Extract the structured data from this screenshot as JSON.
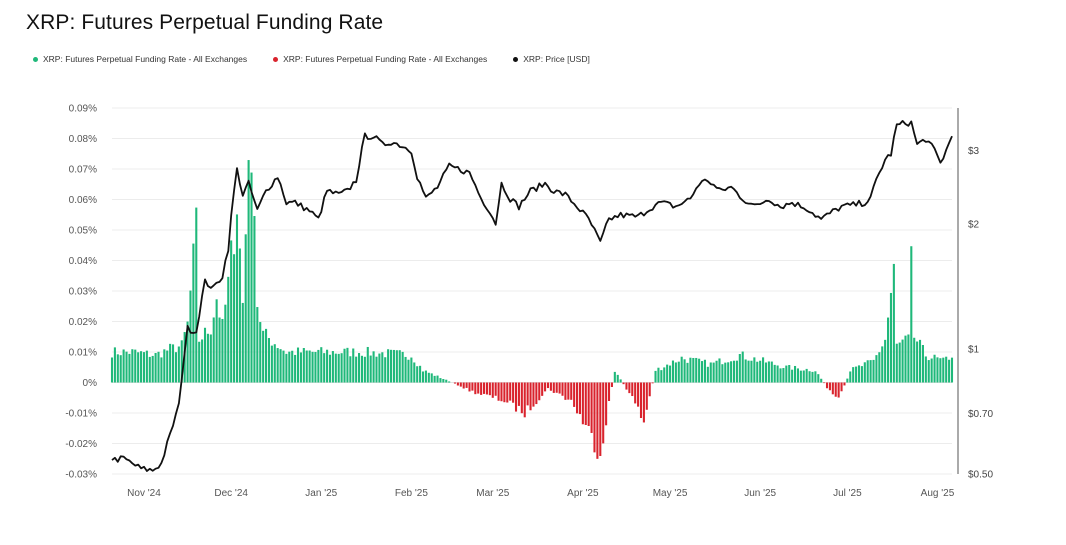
{
  "title": "XRP: Futures Perpetual Funding Rate",
  "legend": [
    {
      "label": "XRP: Futures Perpetual Funding Rate - All Exchanges",
      "color": "#1fb87a"
    },
    {
      "label": "XRP: Futures Perpetual Funding Rate - All Exchanges",
      "color": "#d9232d"
    },
    {
      "label": "XRP: Price [USD]",
      "color": "#111111"
    }
  ],
  "chart_data": {
    "type": "bar",
    "title": "XRP: Futures Perpetual Funding Rate",
    "x_start": "2024-10-21",
    "x_end": "2025-08-06",
    "x_ticks": [
      {
        "date": "2024-11-01",
        "label": "Nov '24"
      },
      {
        "date": "2024-12-01",
        "label": "Dec '24"
      },
      {
        "date": "2025-01-01",
        "label": "Jan '25"
      },
      {
        "date": "2025-02-01",
        "label": "Feb '25"
      },
      {
        "date": "2025-03-01",
        "label": "Mar '25"
      },
      {
        "date": "2025-04-01",
        "label": "Apr '25"
      },
      {
        "date": "2025-05-01",
        "label": "May '25"
      },
      {
        "date": "2025-06-01",
        "label": "Jun '25"
      },
      {
        "date": "2025-07-01",
        "label": "Jul '25"
      },
      {
        "date": "2025-08-01",
        "label": "Aug '25"
      }
    ],
    "y_left": {
      "range": [
        -0.03,
        0.09
      ],
      "ticks": [
        0.09,
        0.08,
        0.07,
        0.06,
        0.05,
        0.04,
        0.03,
        0.02,
        0.01,
        0,
        -0.01,
        -0.02,
        -0.03
      ],
      "tick_labels": [
        "0.09%",
        "0.08%",
        "0.07%",
        "0.06%",
        "0.05%",
        "0.04%",
        "0.03%",
        "0.02%",
        "0.01%",
        "0%",
        "-0.01%",
        "-0.02%",
        "-0.03%"
      ]
    },
    "y_right": {
      "scale": "log",
      "range": [
        0.5,
        3.8
      ],
      "ticks": [
        3,
        2,
        1,
        0.7,
        0.5
      ],
      "tick_labels": [
        "$3",
        "$2",
        "$1",
        "$0.70",
        "$0.50"
      ]
    },
    "funding_rate_keypoints": [
      [
        "2024-10-21",
        0.01
      ],
      [
        "2024-10-28",
        0.01
      ],
      [
        "2024-11-05",
        0.009
      ],
      [
        "2024-11-10",
        0.011
      ],
      [
        "2024-11-14",
        0.012
      ],
      [
        "2024-11-16",
        0.019
      ],
      [
        "2024-11-19",
        0.05
      ],
      [
        "2024-11-20",
        0.014
      ],
      [
        "2024-11-24",
        0.018
      ],
      [
        "2024-11-26",
        0.028
      ],
      [
        "2024-11-28",
        0.018
      ],
      [
        "2024-11-30",
        0.032
      ],
      [
        "2024-12-02",
        0.05
      ],
      [
        "2024-12-03",
        0.06
      ],
      [
        "2024-12-05",
        0.026
      ],
      [
        "2024-12-06",
        0.05
      ],
      [
        "2024-12-07",
        0.082
      ],
      [
        "2024-12-08",
        0.06
      ],
      [
        "2024-12-09",
        0.065
      ],
      [
        "2024-12-10",
        0.026
      ],
      [
        "2024-12-12",
        0.016
      ],
      [
        "2024-12-20",
        0.01
      ],
      [
        "2025-01-15",
        0.01
      ],
      [
        "2025-02-01",
        0.009
      ],
      [
        "2025-02-05",
        0.004
      ],
      [
        "2025-02-10",
        0.002
      ],
      [
        "2025-02-15",
        0.0
      ],
      [
        "2025-02-22",
        -0.003
      ],
      [
        "2025-03-05",
        -0.006
      ],
      [
        "2025-03-12",
        -0.01
      ],
      [
        "2025-03-20",
        -0.002
      ],
      [
        "2025-03-28",
        -0.006
      ],
      [
        "2025-04-03",
        -0.016
      ],
      [
        "2025-04-07",
        -0.023
      ],
      [
        "2025-04-12",
        0.004
      ],
      [
        "2025-04-18",
        -0.005
      ],
      [
        "2025-04-22",
        -0.013
      ],
      [
        "2025-04-26",
        0.004
      ],
      [
        "2025-05-05",
        0.008
      ],
      [
        "2025-05-15",
        0.006
      ],
      [
        "2025-05-25",
        0.009
      ],
      [
        "2025-06-10",
        0.005
      ],
      [
        "2025-06-20",
        0.004
      ],
      [
        "2025-06-25",
        -0.003
      ],
      [
        "2025-06-28",
        -0.006
      ],
      [
        "2025-07-02",
        0.004
      ],
      [
        "2025-07-10",
        0.007
      ],
      [
        "2025-07-14",
        0.014
      ],
      [
        "2025-07-17",
        0.036
      ],
      [
        "2025-07-18",
        0.012
      ],
      [
        "2025-07-22",
        0.014
      ],
      [
        "2025-07-23",
        0.038
      ],
      [
        "2025-07-24",
        0.015
      ],
      [
        "2025-07-28",
        0.009
      ],
      [
        "2025-08-03",
        0.007
      ],
      [
        "2025-08-06",
        0.009
      ]
    ],
    "price_keypoints": [
      [
        "2024-10-21",
        0.54
      ],
      [
        "2024-10-25",
        0.545
      ],
      [
        "2024-10-28",
        0.53
      ],
      [
        "2024-10-31",
        0.515
      ],
      [
        "2024-11-04",
        0.51
      ],
      [
        "2024-11-07",
        0.53
      ],
      [
        "2024-11-10",
        0.62
      ],
      [
        "2024-11-13",
        0.73
      ],
      [
        "2024-11-16",
        1.12
      ],
      [
        "2024-11-19",
        1.1
      ],
      [
        "2024-11-22",
        1.45
      ],
      [
        "2024-11-25",
        1.4
      ],
      [
        "2024-11-28",
        1.5
      ],
      [
        "2024-11-30",
        1.75
      ],
      [
        "2024-12-02",
        2.4
      ],
      [
        "2024-12-03",
        2.7
      ],
      [
        "2024-12-05",
        2.35
      ],
      [
        "2024-12-07",
        2.5
      ],
      [
        "2024-12-10",
        2.15
      ],
      [
        "2024-12-13",
        2.4
      ],
      [
        "2024-12-17",
        2.6
      ],
      [
        "2024-12-20",
        2.25
      ],
      [
        "2024-12-23",
        2.25
      ],
      [
        "2024-12-28",
        2.15
      ],
      [
        "2024-12-31",
        2.05
      ],
      [
        "2025-01-03",
        2.4
      ],
      [
        "2025-01-07",
        2.35
      ],
      [
        "2025-01-10",
        2.4
      ],
      [
        "2025-01-13",
        2.55
      ],
      [
        "2025-01-16",
        3.25
      ],
      [
        "2025-01-19",
        3.25
      ],
      [
        "2025-01-22",
        3.1
      ],
      [
        "2025-01-25",
        3.15
      ],
      [
        "2025-01-28",
        3.1
      ],
      [
        "2025-02-01",
        3.0
      ],
      [
        "2025-02-03",
        2.6
      ],
      [
        "2025-02-06",
        2.3
      ],
      [
        "2025-02-10",
        2.45
      ],
      [
        "2025-02-14",
        2.75
      ],
      [
        "2025-02-18",
        2.7
      ],
      [
        "2025-02-21",
        2.65
      ],
      [
        "2025-02-25",
        2.3
      ],
      [
        "2025-02-28",
        2.15
      ],
      [
        "2025-03-02",
        2.0
      ],
      [
        "2025-03-04",
        2.5
      ],
      [
        "2025-03-07",
        2.3
      ],
      [
        "2025-03-10",
        2.2
      ],
      [
        "2025-03-14",
        2.4
      ],
      [
        "2025-03-19",
        2.5
      ],
      [
        "2025-03-22",
        2.4
      ],
      [
        "2025-03-26",
        2.35
      ],
      [
        "2025-03-30",
        2.2
      ],
      [
        "2025-04-03",
        2.05
      ],
      [
        "2025-04-07",
        1.8
      ],
      [
        "2025-04-10",
        2.05
      ],
      [
        "2025-04-14",
        2.1
      ],
      [
        "2025-04-20",
        2.08
      ],
      [
        "2025-04-25",
        2.2
      ],
      [
        "2025-04-28",
        2.25
      ],
      [
        "2025-05-03",
        2.2
      ],
      [
        "2025-05-08",
        2.3
      ],
      [
        "2025-05-11",
        2.5
      ],
      [
        "2025-05-14",
        2.55
      ],
      [
        "2025-05-18",
        2.4
      ],
      [
        "2025-05-22",
        2.45
      ],
      [
        "2025-05-26",
        2.3
      ],
      [
        "2025-05-30",
        2.2
      ],
      [
        "2025-06-04",
        2.3
      ],
      [
        "2025-06-08",
        2.2
      ],
      [
        "2025-06-12",
        2.25
      ],
      [
        "2025-06-17",
        2.18
      ],
      [
        "2025-06-22",
        2.05
      ],
      [
        "2025-06-25",
        2.12
      ],
      [
        "2025-06-29",
        2.2
      ],
      [
        "2025-07-03",
        2.22
      ],
      [
        "2025-07-07",
        2.25
      ],
      [
        "2025-07-09",
        2.3
      ],
      [
        "2025-07-11",
        2.55
      ],
      [
        "2025-07-14",
        2.85
      ],
      [
        "2025-07-16",
        2.95
      ],
      [
        "2025-07-18",
        3.45
      ],
      [
        "2025-07-21",
        3.5
      ],
      [
        "2025-07-23",
        3.5
      ],
      [
        "2025-07-25",
        3.1
      ],
      [
        "2025-07-28",
        3.2
      ],
      [
        "2025-07-31",
        3.0
      ],
      [
        "2025-08-02",
        2.8
      ],
      [
        "2025-08-04",
        3.0
      ],
      [
        "2025-08-06",
        3.25
      ]
    ],
    "colors": {
      "positive": "#1fb87a",
      "negative": "#d9232d",
      "price": "#111111"
    }
  }
}
